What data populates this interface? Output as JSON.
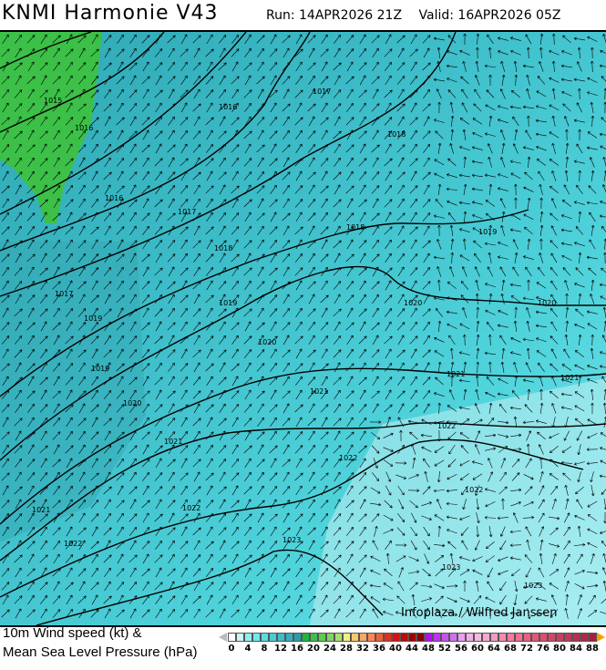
{
  "header": {
    "title": "KNMI Harmonie V43",
    "run": "Run: 14APR2026 21Z",
    "valid": "Valid: 16APR2026 05Z"
  },
  "map": {
    "background_color": "#44c9d2",
    "isobar_labels": [
      "1015",
      "1016",
      "1016",
      "1016",
      "1017",
      "1017",
      "1017",
      "1018",
      "1018",
      "1018",
      "1019",
      "1019",
      "1019",
      "1019",
      "1020",
      "1020",
      "1020",
      "1020",
      "1021",
      "1021",
      "1021",
      "1021",
      "1021",
      "1022",
      "1022",
      "1022",
      "1022",
      "1022",
      "1023",
      "1023",
      "1023"
    ],
    "watermark": "Infoplaza / Wilfred Janssen"
  },
  "legend": {
    "line1": "10m Wind speed (kt) &",
    "line2": "Mean Sea Level Pressure (hPa)",
    "ticks": [
      "0",
      "4",
      "8",
      "12",
      "16",
      "20",
      "24",
      "28",
      "32",
      "36",
      "40",
      "44",
      "48",
      "52",
      "56",
      "60",
      "64",
      "68",
      "72",
      "76",
      "80",
      "84",
      "88"
    ],
    "colors": [
      "#ffffff",
      "#c8f8f8",
      "#90f0f0",
      "#70e8ec",
      "#5adce4",
      "#48ccd8",
      "#40bcc8",
      "#38acb8",
      "#309ca8",
      "#24b43c",
      "#3cc04c",
      "#5ccc50",
      "#80d460",
      "#a8e070",
      "#f0f080",
      "#f8c870",
      "#f8a860",
      "#f88850",
      "#f06038",
      "#e03020",
      "#d81010",
      "#c00808",
      "#a00000",
      "#880000",
      "#b010f0",
      "#c030f0",
      "#c850f0",
      "#d070f0",
      "#e8a0f0",
      "#f0b0e8",
      "#f8b8e0",
      "#f8a8d0",
      "#f898c0",
      "#f888b0",
      "#f878a0",
      "#f07090",
      "#e86080",
      "#e05878",
      "#d85070",
      "#d04868",
      "#c84060",
      "#c03858",
      "#b83050",
      "#b02848",
      "#a82040"
    ],
    "under_color": "#bbbbbb",
    "over_color": "#f0a000"
  }
}
